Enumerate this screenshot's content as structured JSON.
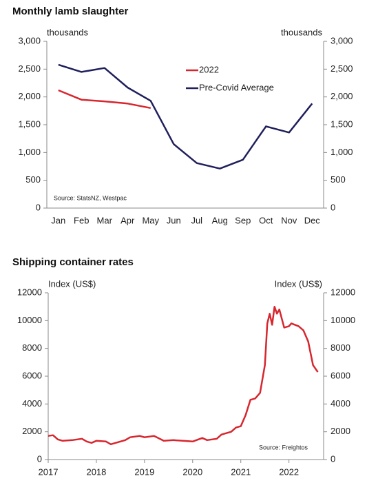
{
  "chart_data": [
    {
      "type": "line",
      "title": "Monthly lamb slaughter",
      "y_label": "thousands",
      "y2_label": "thousands",
      "annotation": "Source: StatsNZ, Westpac",
      "categories": [
        "Jan",
        "Feb",
        "Mar",
        "Apr",
        "May",
        "Jun",
        "Jul",
        "Aug",
        "Sep",
        "Oct",
        "Nov",
        "Dec"
      ],
      "series": [
        {
          "name": "2022",
          "color": "#d7262e",
          "values": [
            2120,
            1950,
            1920,
            1880,
            1800,
            null,
            null,
            null,
            null,
            null,
            null,
            null
          ]
        },
        {
          "name": "Pre-Covid Average",
          "color": "#1f1f5c",
          "values": [
            2580,
            2450,
            2520,
            2170,
            1930,
            1150,
            810,
            710,
            870,
            1470,
            1360,
            1880
          ]
        }
      ],
      "ylim": [
        0,
        3000
      ],
      "yticks": [
        0,
        500,
        {
          "value": 1000,
          "label": "1,000"
        },
        {
          "value": 1500,
          "label": "1,500"
        },
        {
          "value": 2000,
          "label": "2,000"
        },
        {
          "value": 2500,
          "label": "2,500"
        },
        {
          "value": 3000,
          "label": "3,000"
        }
      ],
      "y2lim": [
        0,
        3000
      ],
      "y2ticks": [
        0,
        500,
        {
          "value": 1000,
          "label": "1,000"
        },
        {
          "value": 1500,
          "label": "1,500"
        },
        {
          "value": 2000,
          "label": "2,000"
        },
        {
          "value": 2500,
          "label": "2,500"
        },
        {
          "value": 3000,
          "label": "3,000"
        }
      ],
      "legend": "upper right"
    },
    {
      "type": "line",
      "title": "Shipping container rates",
      "y_label": "Index (US$)",
      "y2_label": "Index (US$)",
      "annotation": "Source: Freightos",
      "x": [
        2017.0,
        2017.1,
        2017.2,
        2017.3,
        2017.5,
        2017.7,
        2017.8,
        2017.9,
        2018.0,
        2018.2,
        2018.3,
        2018.4,
        2018.6,
        2018.7,
        2018.9,
        2019.0,
        2019.2,
        2019.4,
        2019.6,
        2019.8,
        2020.0,
        2020.2,
        2020.3,
        2020.5,
        2020.6,
        2020.8,
        2020.9,
        2021.0,
        2021.1,
        2021.2,
        2021.3,
        2021.4,
        2021.5,
        2021.55,
        2021.6,
        2021.65,
        2021.7,
        2021.75,
        2021.8,
        2021.9,
        2022.0,
        2022.05,
        2022.2,
        2022.3,
        2022.4,
        2022.5,
        2022.6
      ],
      "series": [
        {
          "color": "#d7262e",
          "values": [
            1700,
            1750,
            1450,
            1350,
            1400,
            1500,
            1300,
            1200,
            1350,
            1300,
            1100,
            1200,
            1400,
            1600,
            1700,
            1600,
            1700,
            1350,
            1400,
            1350,
            1300,
            1550,
            1400,
            1500,
            1800,
            2000,
            2300,
            2400,
            3200,
            4300,
            4400,
            4800,
            6800,
            9800,
            10500,
            9700,
            11000,
            10500,
            10800,
            9500,
            9600,
            9800,
            9600,
            9300,
            8500,
            6800,
            6300
          ]
        }
      ],
      "xlim": [
        2017,
        2022.72
      ],
      "xticks": [
        2017,
        2018,
        2019,
        2020,
        2021,
        2022
      ],
      "ylim": [
        0,
        12000
      ],
      "yticks": [
        0,
        2000,
        4000,
        6000,
        8000,
        10000,
        12000
      ],
      "y2lim": [
        0,
        12000
      ],
      "y2ticks": [
        0,
        2000,
        4000,
        6000,
        8000,
        10000,
        12000
      ]
    }
  ]
}
